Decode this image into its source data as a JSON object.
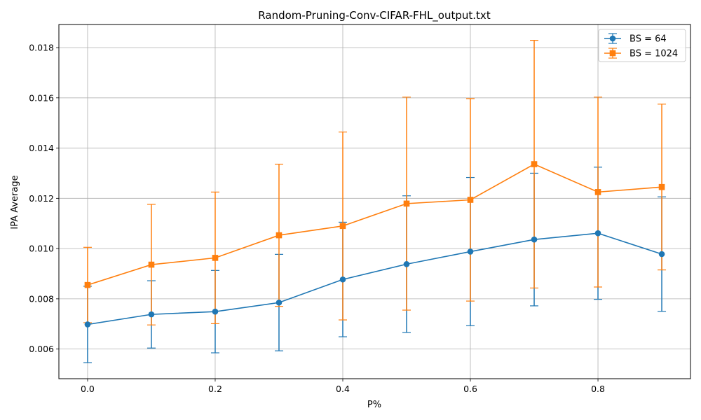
{
  "chart_data": {
    "type": "line",
    "title": "Random-Pruning-Conv-CIFAR-FHL_output.txt",
    "xlabel": "P%",
    "ylabel": "IPA Average",
    "x": [
      0.0,
      0.1,
      0.2,
      0.3,
      0.4,
      0.5,
      0.6,
      0.7,
      0.8,
      0.9
    ],
    "xlim": [
      -0.045,
      0.945
    ],
    "ylim": [
      0.00482,
      0.01892
    ],
    "x_ticks": [
      0.0,
      0.2,
      0.4,
      0.6,
      0.8
    ],
    "x_tick_labels": [
      "0.0",
      "0.2",
      "0.4",
      "0.6",
      "0.8"
    ],
    "y_ticks": [
      0.006,
      0.008,
      0.01,
      0.012,
      0.014,
      0.016,
      0.018
    ],
    "y_tick_labels": [
      "0.006",
      "0.008",
      "0.010",
      "0.012",
      "0.014",
      "0.016",
      "0.018"
    ],
    "grid": true,
    "legend_position": "top-right",
    "series": [
      {
        "name": "BS = 64",
        "color": "#1f77b4",
        "marker": "circle",
        "values": [
          0.00698,
          0.00738,
          0.00749,
          0.00785,
          0.00877,
          0.00938,
          0.00988,
          0.01036,
          0.01061,
          0.00978
        ],
        "error": [
          0.00152,
          0.00134,
          0.00164,
          0.00192,
          0.00228,
          0.00272,
          0.00295,
          0.00264,
          0.00263,
          0.00228
        ]
      },
      {
        "name": "BS = 1024",
        "color": "#ff7f0e",
        "marker": "square",
        "values": [
          0.00855,
          0.00936,
          0.00963,
          0.01053,
          0.0109,
          0.01179,
          0.01194,
          0.01336,
          0.01225,
          0.01245
        ],
        "error": [
          0.0015,
          0.0024,
          0.00262,
          0.00283,
          0.00374,
          0.00424,
          0.00403,
          0.00493,
          0.00378,
          0.0033
        ]
      }
    ]
  }
}
